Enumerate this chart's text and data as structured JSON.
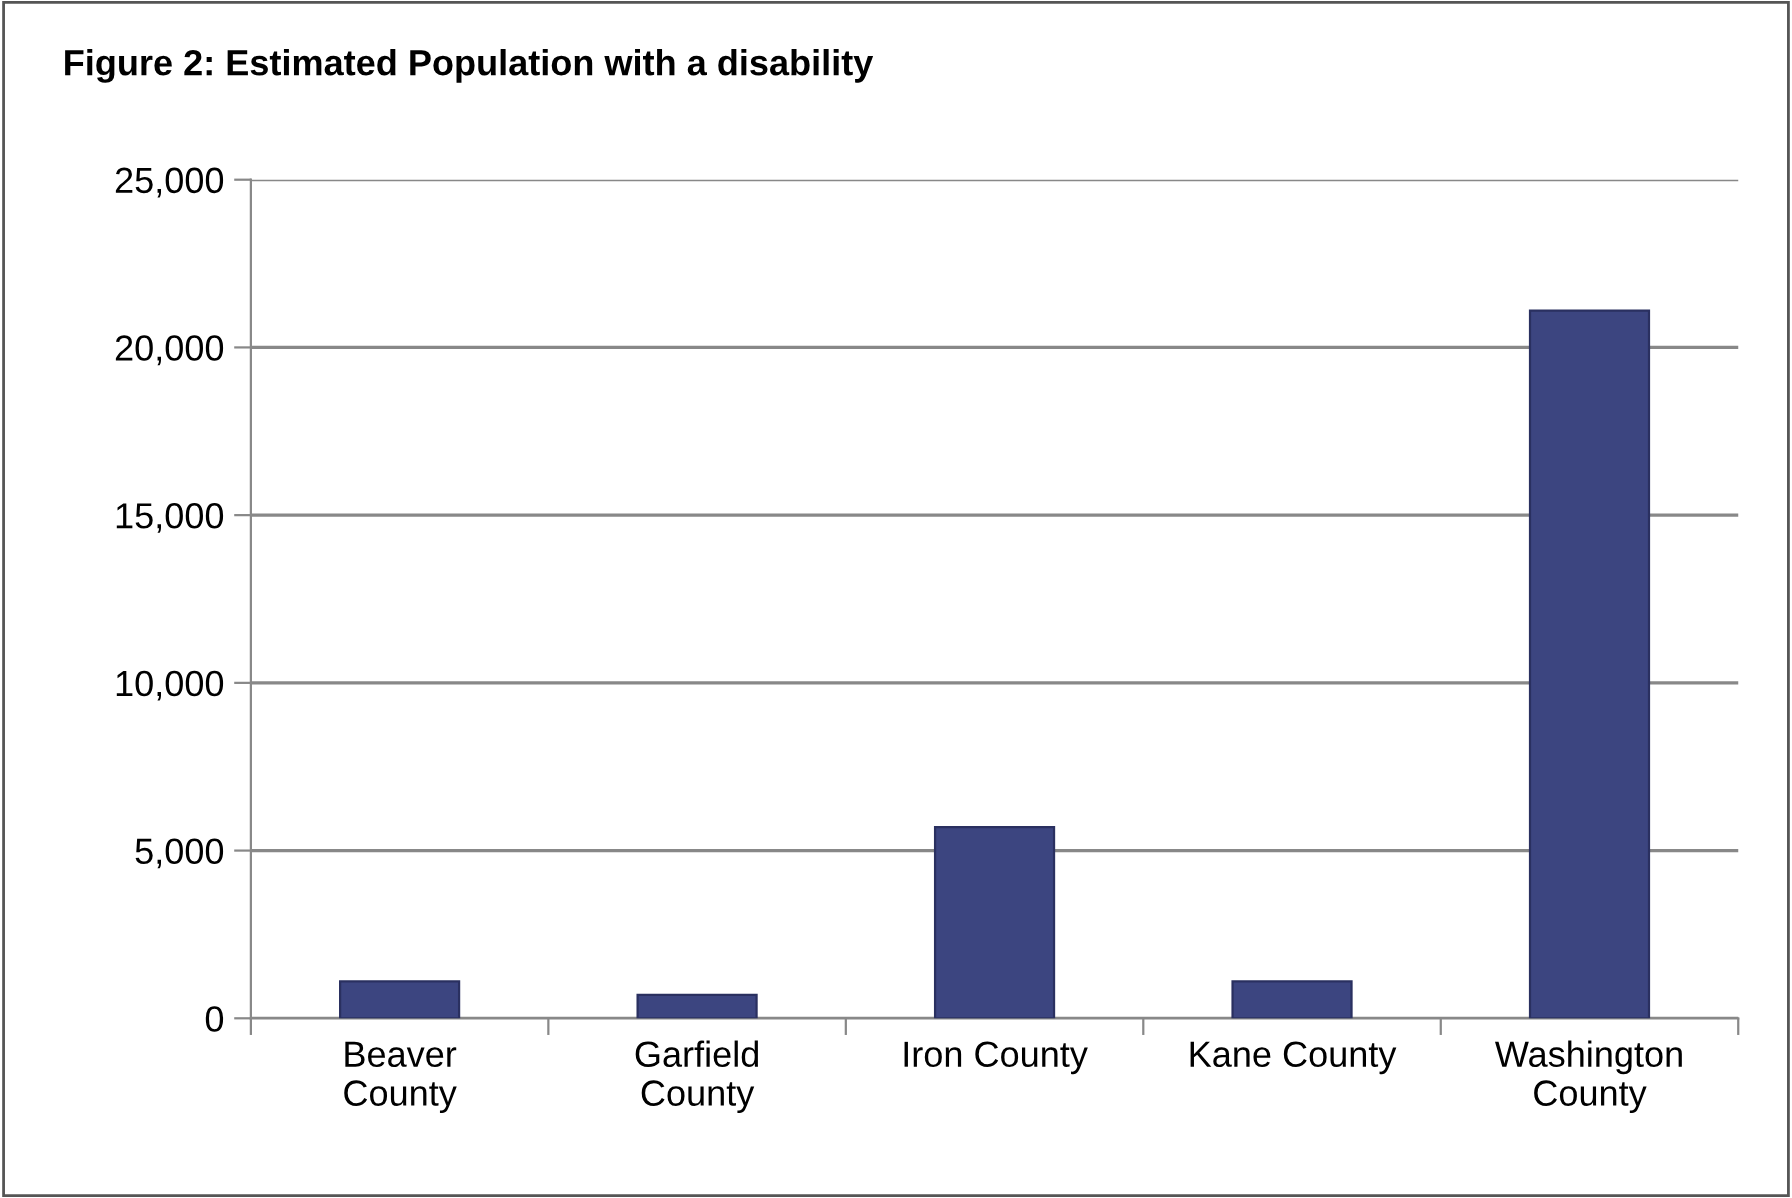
{
  "chart_data": {
    "type": "bar",
    "title": "Figure 2: Estimated Population with a disability",
    "categories": [
      "Beaver\nCounty",
      "Garfield\nCounty",
      "Iron County",
      "Kane County",
      "Washington\nCounty"
    ],
    "values": [
      1100,
      700,
      5700,
      1100,
      21100
    ],
    "color": "#3c4580",
    "ylim": [
      0,
      25000
    ],
    "yticks": [
      {
        "value": 0,
        "label": "0"
      },
      {
        "value": 5000,
        "label": "5,000"
      },
      {
        "value": 10000,
        "label": "10,000"
      },
      {
        "value": 15000,
        "label": "15,000"
      },
      {
        "value": 20000,
        "label": "20,000"
      },
      {
        "value": 25000,
        "label": "25,000"
      }
    ],
    "grid": "y",
    "legend": false
  }
}
